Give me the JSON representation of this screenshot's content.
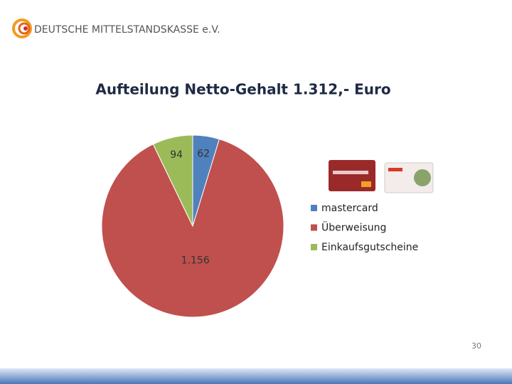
{
  "header": {
    "organization": "DEUTSCHE MITTELSTANDSKASSE e.V."
  },
  "chart_data": {
    "type": "pie",
    "title": "Aufteilung Netto-Gehalt 1.312,- Euro",
    "categories": [
      "mastercard",
      "Überweisung",
      "Einkaufsgutscheine"
    ],
    "values": [
      62,
      1156,
      94
    ],
    "value_labels": [
      "62",
      "1.156",
      "94"
    ],
    "colors": [
      "#4f81bd",
      "#c0504d",
      "#9bbb59"
    ]
  },
  "slide_number": 30
}
